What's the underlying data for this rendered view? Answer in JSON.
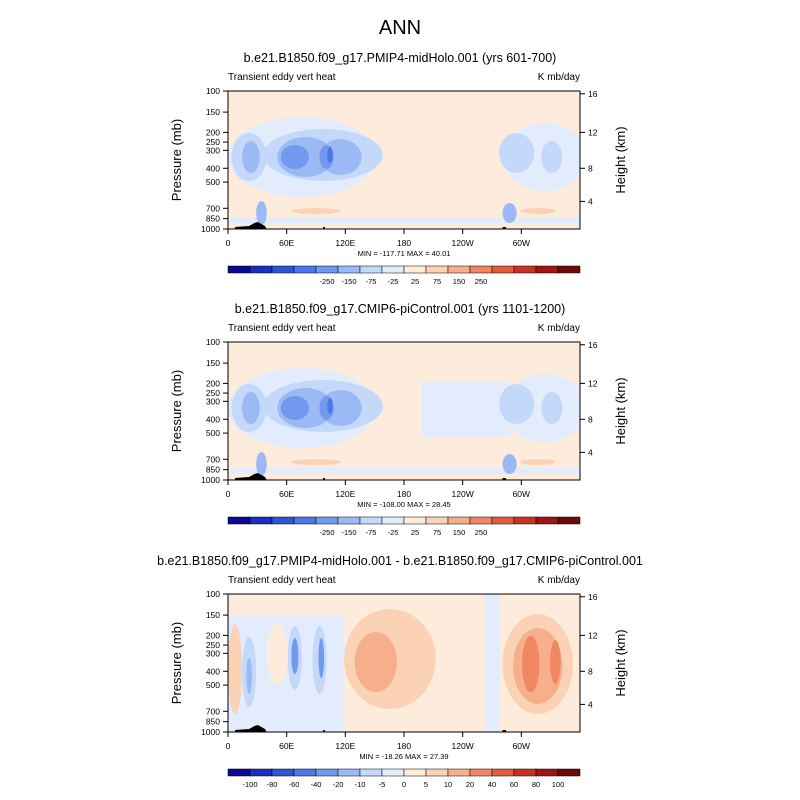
{
  "figure": {
    "title": "ANN"
  },
  "chart_data": [
    {
      "type": "heatmap",
      "title": "b.e21.B1850.f09_g17.PMIP4-midHolo.001 (yrs 601-700)",
      "variable": "Transient eddy vert heat",
      "units": "K mb/day",
      "ylabel": "Pressure (mb)",
      "y2label": "Height (km)",
      "xticks": [
        "0",
        "60E",
        "120E",
        "180",
        "120W",
        "60W"
      ],
      "yticks": [
        "100",
        "150",
        "200",
        "250",
        "300",
        "400",
        "500",
        "700",
        "850",
        "1000"
      ],
      "y2ticks": [
        "16",
        "12",
        "8",
        "4"
      ],
      "stats": "MIN = -117.71  MAX =  40.01",
      "colorbar_labels": [
        "-250",
        "-150",
        "-75",
        "-25",
        "25",
        "75",
        "150",
        "250"
      ],
      "colorbar_colors": [
        "#0a0a8c",
        "#1a2fbf",
        "#2e55d9",
        "#4a78e8",
        "#7199f0",
        "#9bb9f5",
        "#c4d8fa",
        "#e2ecfd",
        "#fdebdc",
        "#fbd2b6",
        "#f7ae8a",
        "#f18663",
        "#e35c3e",
        "#c93222",
        "#a11414",
        "#6e0a0a"
      ]
    },
    {
      "type": "heatmap",
      "title": "b.e21.B1850.f09_g17.CMIP6-piControl.001 (yrs 1101-1200)",
      "variable": "Transient eddy vert heat",
      "units": "K mb/day",
      "ylabel": "Pressure (mb)",
      "y2label": "Height (km)",
      "xticks": [
        "0",
        "60E",
        "120E",
        "180",
        "120W",
        "60W"
      ],
      "yticks": [
        "100",
        "150",
        "200",
        "250",
        "300",
        "400",
        "500",
        "700",
        "850",
        "1000"
      ],
      "y2ticks": [
        "16",
        "12",
        "8",
        "4"
      ],
      "stats": "MIN = -108.00  MAX =  28.45",
      "colorbar_labels": [
        "-250",
        "-150",
        "-75",
        "-25",
        "25",
        "75",
        "150",
        "250"
      ],
      "colorbar_colors": [
        "#0a0a8c",
        "#1a2fbf",
        "#2e55d9",
        "#4a78e8",
        "#7199f0",
        "#9bb9f5",
        "#c4d8fa",
        "#e2ecfd",
        "#fdebdc",
        "#fbd2b6",
        "#f7ae8a",
        "#f18663",
        "#e35c3e",
        "#c93222",
        "#a11414",
        "#6e0a0a"
      ]
    },
    {
      "type": "heatmap",
      "title": "b.e21.B1850.f09_g17.PMIP4-midHolo.001 - b.e21.B1850.f09_g17.CMIP6-piControl.001",
      "variable": "Transient eddy vert heat",
      "units": "K mb/day",
      "ylabel": "Pressure (mb)",
      "y2label": "Height (km)",
      "xticks": [
        "0",
        "60E",
        "120E",
        "180",
        "120W",
        "60W"
      ],
      "yticks": [
        "100",
        "150",
        "200",
        "250",
        "300",
        "400",
        "500",
        "700",
        "850",
        "1000"
      ],
      "y2ticks": [
        "16",
        "12",
        "8",
        "4"
      ],
      "stats": "MIN = -18.26  MAX =  27.39",
      "colorbar_labels": [
        "-100",
        "-80",
        "-60",
        "-40",
        "-20",
        "-10",
        "-5",
        "0",
        "5",
        "10",
        "20",
        "40",
        "60",
        "80",
        "100"
      ],
      "colorbar_colors": [
        "#0a0a8c",
        "#1a2fbf",
        "#2e55d9",
        "#4a78e8",
        "#7199f0",
        "#9bb9f5",
        "#c4d8fa",
        "#e2ecfd",
        "#fdebdc",
        "#fbd2b6",
        "#f7ae8a",
        "#f18663",
        "#e35c3e",
        "#c93222",
        "#a11414",
        "#6e0a0a"
      ]
    }
  ]
}
